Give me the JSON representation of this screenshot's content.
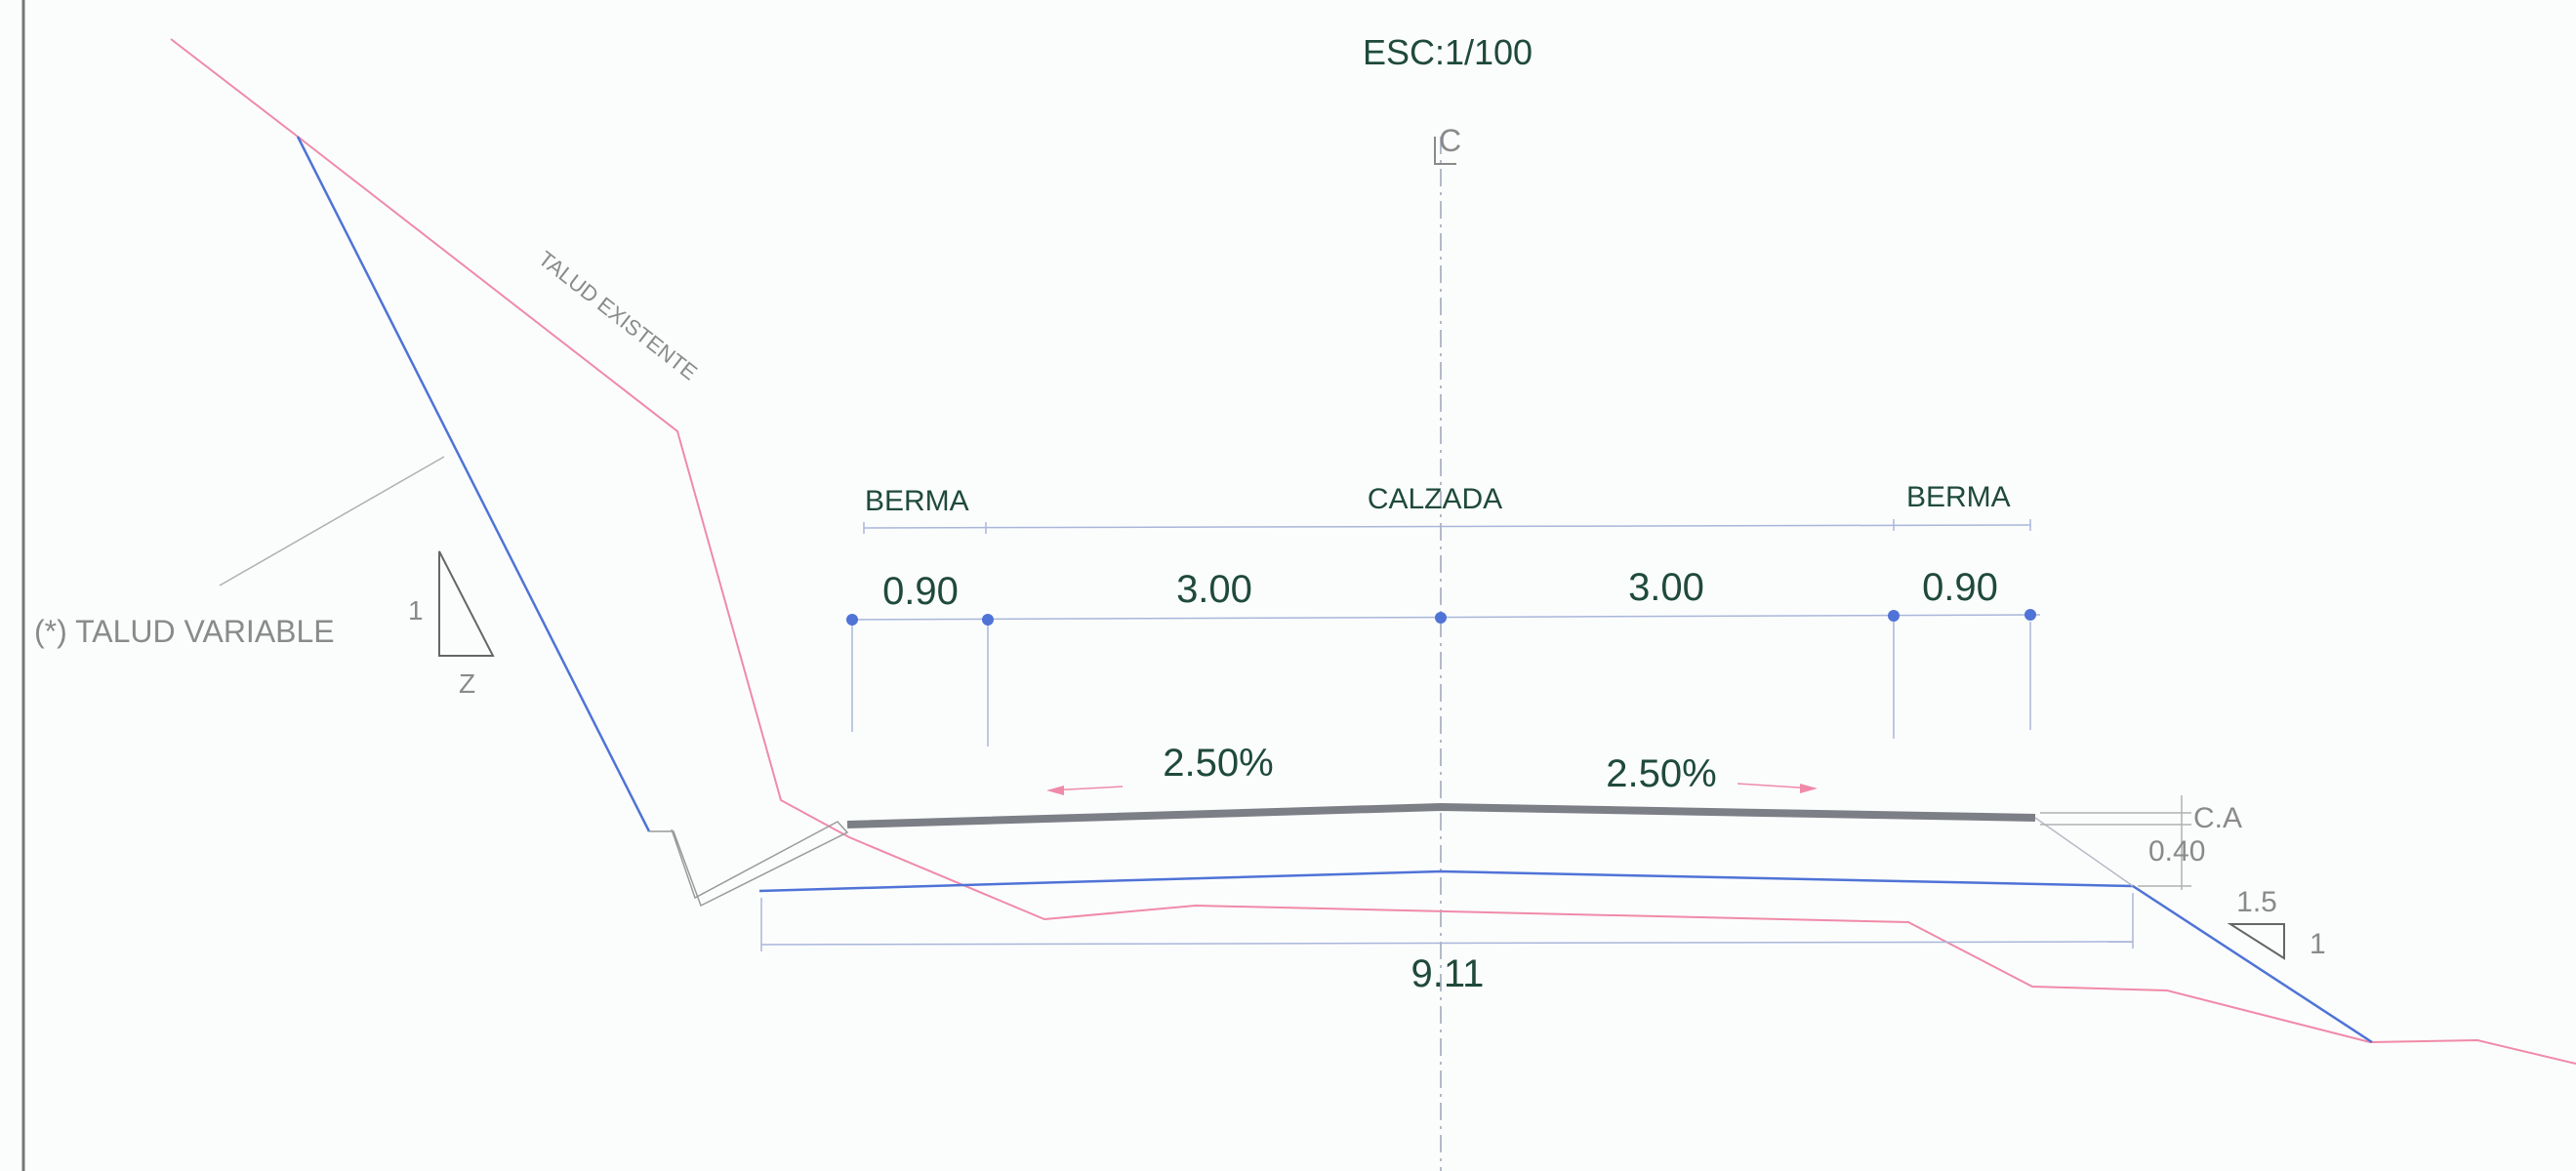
{
  "scale_label": "ESC:1/100",
  "centerline_symbol": "C",
  "labels": {
    "berma_left": "BERMA",
    "calzada": "CALZADA",
    "berma_right": "BERMA",
    "talud_existente": "TALUD EXISTENTE",
    "talud_variable": "(*) TALUD VARIABLE",
    "slope_legend_vertical": "1",
    "slope_legend_horizontal": "Z",
    "ca": "C.A",
    "right_slope_h": "1.5",
    "right_slope_v": "1"
  },
  "dimensions": {
    "berma_left": "0.90",
    "lane_left": "3.00",
    "lane_right": "3.00",
    "berma_right": "0.90",
    "slope_left": "2.50%",
    "slope_right": "2.50%",
    "thickness": "0.40",
    "total_width": "9.11"
  },
  "colors": {
    "pavement": "#7d7f86",
    "subgrade": "#4f73d6",
    "existing_ground": "#f08aa8",
    "dimension_line": "#8fa6d8",
    "text": "#1f4a3a"
  }
}
